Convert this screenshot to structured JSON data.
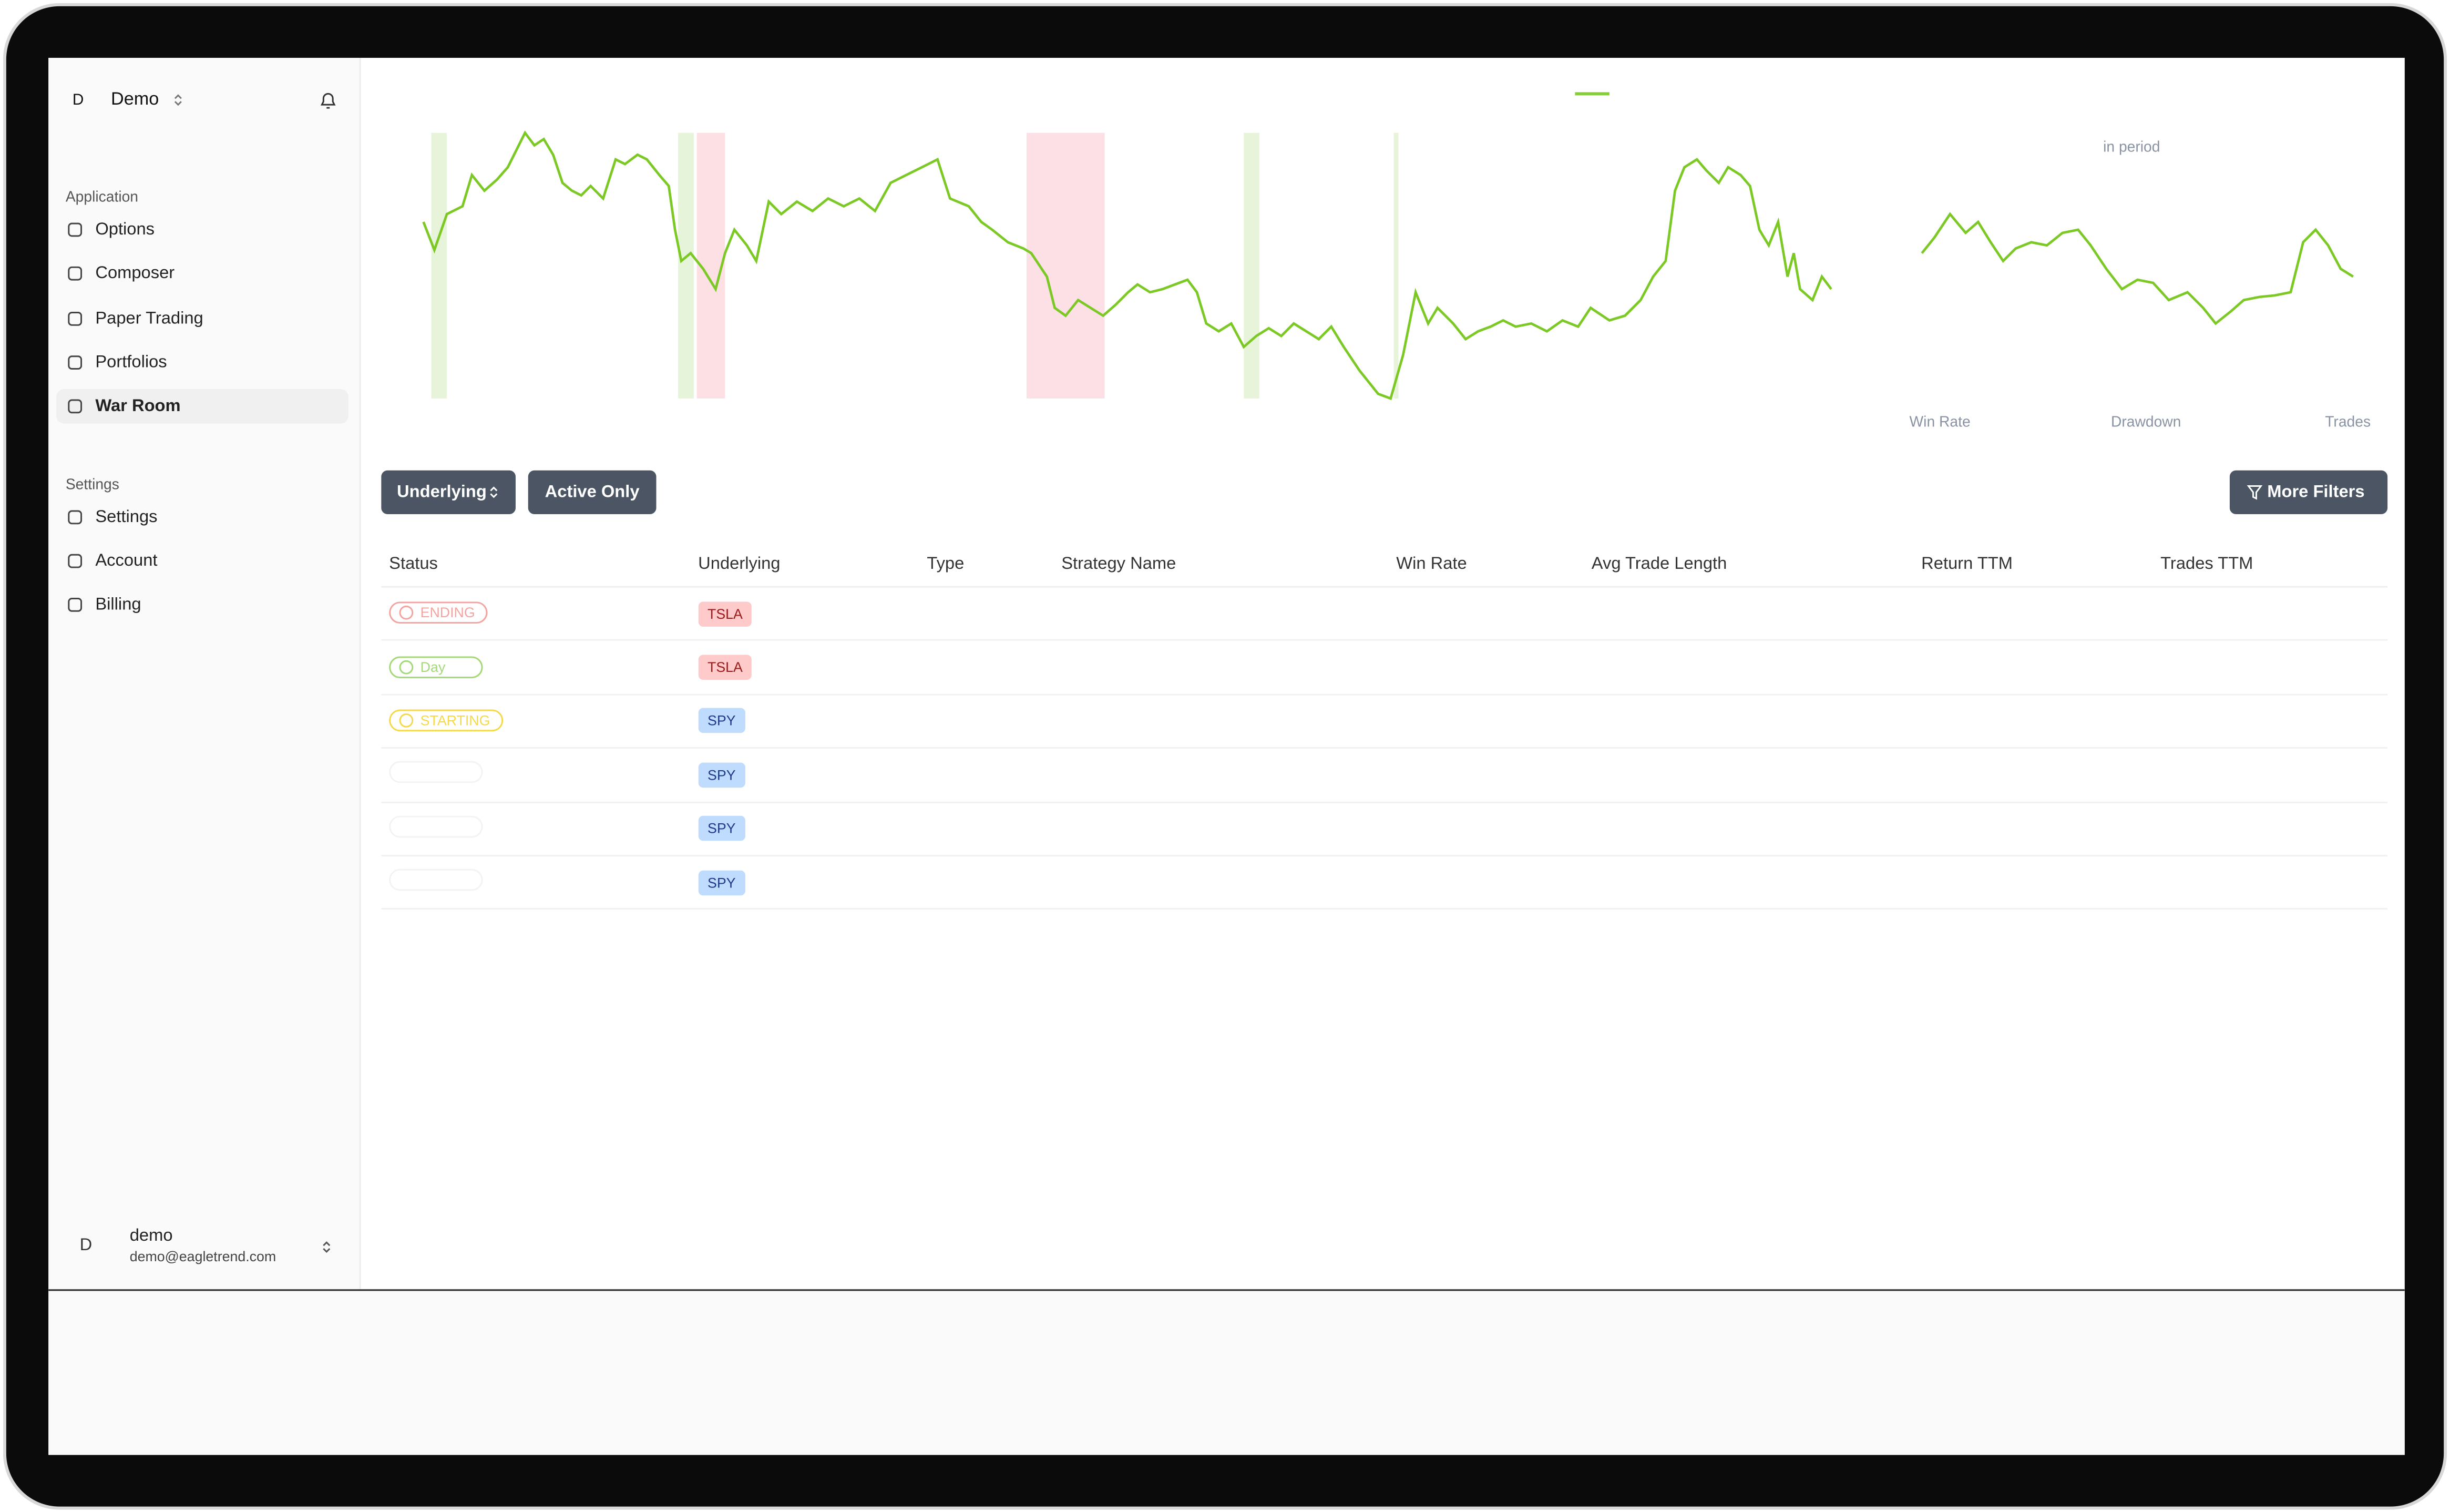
{
  "sidebar": {
    "workspace_initial": "D",
    "workspace": "Demo",
    "sections": [
      {
        "title": "Application",
        "items": [
          "Options",
          "Composer",
          "Paper Trading",
          "Portfolios",
          "War Room"
        ],
        "active": 4
      },
      {
        "title": "Settings",
        "items": [
          "Settings",
          "Account",
          "Billing"
        ]
      }
    ],
    "user": {
      "initial": "D",
      "name": "demo",
      "email": "demo@eagletrend.com"
    }
  },
  "chart": {
    "period_label": "in period",
    "metrics": [
      "Win Rate",
      "Drawdown",
      "Trades"
    ]
  },
  "toolbar": {
    "buttons": [
      "Underlying",
      "Active Only"
    ],
    "more_filters": "More Filters"
  },
  "table": {
    "headers": [
      "Status",
      "Underlying",
      "Type",
      "Strategy Name",
      "Win Rate",
      "Avg Trade Length",
      "Return TTM",
      "Trades TTM"
    ],
    "rows": [
      {
        "status": "ENDING",
        "status_color": "#f4a4a0",
        "underlying": "TSLA",
        "underlying_bg": "#fecaca",
        "underlying_color": "#991b1b"
      },
      {
        "status": "Day",
        "status_color": "#a3d977",
        "underlying": "TSLA",
        "underlying_bg": "#fecaca",
        "underlying_color": "#991b1b"
      },
      {
        "status": "STARTING",
        "status_color": "#f5d94a",
        "underlying": "SPY",
        "underlying_bg": "#bfdbfe",
        "underlying_color": "#1e3a8a"
      },
      {
        "status": null,
        "underlying": "SPY",
        "underlying_bg": "#bfdbfe",
        "underlying_color": "#1e3a8a"
      },
      {
        "status": null,
        "underlying": "SPY",
        "underlying_bg": "#bfdbfe",
        "underlying_color": "#1e3a8a"
      },
      {
        "status": null,
        "underlying": "SPY",
        "underlying_bg": "#bfdbfe",
        "underlying_color": "#1e3a8a"
      }
    ]
  }
}
